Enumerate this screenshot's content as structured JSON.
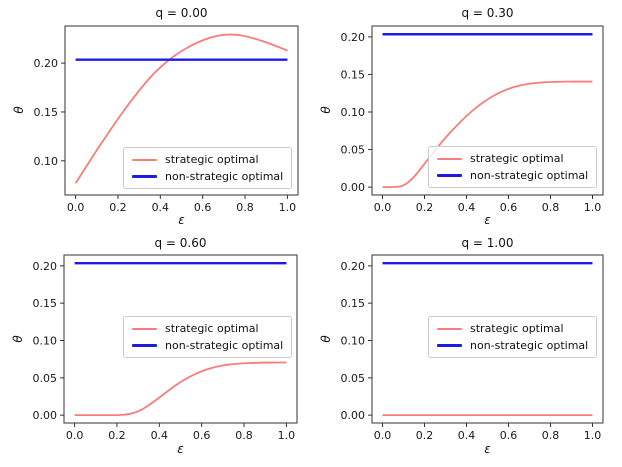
{
  "figure": {
    "background": "#ffffff"
  },
  "colors": {
    "strategic": "#f97c7c",
    "non_strategic": "#1c1ce0",
    "frame": "#333333",
    "text": "#1a1a1a",
    "legend_border": "#cccccc"
  },
  "legend": {
    "strategic": "strategic optimal",
    "non_strategic": "non-strategic optimal"
  },
  "chart_data": [
    {
      "type": "line",
      "title": "q = 0.00",
      "xlabel": "ε",
      "ylabel": "θ",
      "xlim": [
        -0.05,
        1.05
      ],
      "ylim": [
        0.065,
        0.238
      ],
      "xticks": [
        0.0,
        0.2,
        0.4,
        0.6,
        0.8,
        1.0
      ],
      "xtick_labels": [
        "0.0",
        "0.2",
        "0.4",
        "0.6",
        "0.8",
        "1.0"
      ],
      "yticks": [
        0.1,
        0.15,
        0.2
      ],
      "ytick_labels": [
        "0.10",
        "0.15",
        "0.20"
      ],
      "grid": false,
      "legend_position": "lower right",
      "x": [
        0,
        0.05,
        0.1,
        0.15,
        0.2,
        0.25,
        0.3,
        0.35,
        0.4,
        0.45,
        0.5,
        0.55,
        0.6,
        0.65,
        0.7,
        0.75,
        0.8,
        0.85,
        0.9,
        0.95,
        1.0
      ],
      "series": [
        {
          "name": "strategic optimal",
          "color_key": "strategic",
          "values": [
            0.077,
            0.094,
            0.111,
            0.127,
            0.143,
            0.158,
            0.172,
            0.185,
            0.196,
            0.205,
            0.2125,
            0.2185,
            0.2235,
            0.2272,
            0.2292,
            0.2293,
            0.2277,
            0.2248,
            0.2212,
            0.2172,
            0.2128
          ]
        },
        {
          "name": "non-strategic optimal",
          "color_key": "non_strategic",
          "x": [
            0,
            1.0
          ],
          "values": [
            0.2035,
            0.2035
          ]
        }
      ]
    },
    {
      "type": "line",
      "title": "q = 0.30",
      "xlabel": "ε",
      "ylabel": "θ",
      "xlim": [
        -0.05,
        1.05
      ],
      "ylim": [
        -0.0105,
        0.2145
      ],
      "xticks": [
        0.0,
        0.2,
        0.4,
        0.6,
        0.8,
        1.0
      ],
      "xtick_labels": [
        "0.0",
        "0.2",
        "0.4",
        "0.6",
        "0.8",
        "1.0"
      ],
      "yticks": [
        0.0,
        0.05,
        0.1,
        0.15,
        0.2
      ],
      "ytick_labels": [
        "0.00",
        "0.05",
        "0.10",
        "0.15",
        "0.20"
      ],
      "grid": false,
      "legend_position": "lower right",
      "x": [
        0,
        0.05,
        0.1,
        0.15,
        0.2,
        0.25,
        0.3,
        0.35,
        0.4,
        0.45,
        0.5,
        0.55,
        0.6,
        0.65,
        0.7,
        0.75,
        0.8,
        0.85,
        0.9,
        0.95,
        1.0
      ],
      "series": [
        {
          "name": "strategic optimal",
          "color_key": "strategic",
          "values": [
            0,
            0,
            0.001,
            0.013,
            0.031,
            0.049,
            0.066,
            0.081,
            0.095,
            0.107,
            0.117,
            0.125,
            0.131,
            0.1352,
            0.1378,
            0.1392,
            0.14,
            0.1404,
            0.1405,
            0.1405,
            0.1405
          ]
        },
        {
          "name": "non-strategic optimal",
          "color_key": "non_strategic",
          "x": [
            0,
            1.0
          ],
          "values": [
            0.2035,
            0.2035
          ]
        }
      ]
    },
    {
      "type": "line",
      "title": "q = 0.60",
      "xlabel": "ε",
      "ylabel": "θ",
      "xlim": [
        -0.05,
        1.05
      ],
      "ylim": [
        -0.0105,
        0.2145
      ],
      "xticks": [
        0.0,
        0.2,
        0.4,
        0.6,
        0.8,
        1.0
      ],
      "xtick_labels": [
        "0.0",
        "0.2",
        "0.4",
        "0.6",
        "0.8",
        "1.0"
      ],
      "yticks": [
        0.0,
        0.05,
        0.1,
        0.15,
        0.2
      ],
      "ytick_labels": [
        "0.00",
        "0.05",
        "0.10",
        "0.15",
        "0.20"
      ],
      "grid": false,
      "legend_position": "center right",
      "x": [
        0,
        0.05,
        0.1,
        0.15,
        0.2,
        0.25,
        0.3,
        0.35,
        0.4,
        0.45,
        0.5,
        0.55,
        0.6,
        0.65,
        0.7,
        0.75,
        0.8,
        0.85,
        0.9,
        0.95,
        1.0
      ],
      "series": [
        {
          "name": "strategic optimal",
          "color_key": "strategic",
          "values": [
            0,
            0,
            0,
            0,
            0,
            0.0008,
            0.0045,
            0.013,
            0.0235,
            0.0345,
            0.0445,
            0.0525,
            0.059,
            0.0637,
            0.0667,
            0.0685,
            0.0696,
            0.0701,
            0.0704,
            0.0705,
            0.0705
          ]
        },
        {
          "name": "non-strategic optimal",
          "color_key": "non_strategic",
          "x": [
            0,
            1.0
          ],
          "values": [
            0.2035,
            0.2035
          ]
        }
      ]
    },
    {
      "type": "line",
      "title": "q = 1.00",
      "xlabel": "ε",
      "ylabel": "θ",
      "xlim": [
        -0.05,
        1.05
      ],
      "ylim": [
        -0.0105,
        0.2145
      ],
      "xticks": [
        0.0,
        0.2,
        0.4,
        0.6,
        0.8,
        1.0
      ],
      "xtick_labels": [
        "0.0",
        "0.2",
        "0.4",
        "0.6",
        "0.8",
        "1.0"
      ],
      "yticks": [
        0.0,
        0.05,
        0.1,
        0.15,
        0.2
      ],
      "ytick_labels": [
        "0.00",
        "0.05",
        "0.10",
        "0.15",
        "0.20"
      ],
      "grid": false,
      "legend_position": "center right",
      "x": [
        0,
        1.0
      ],
      "series": [
        {
          "name": "strategic optimal",
          "color_key": "strategic",
          "values": [
            0,
            0
          ]
        },
        {
          "name": "non-strategic optimal",
          "color_key": "non_strategic",
          "x": [
            0,
            1.0
          ],
          "values": [
            0.2035,
            0.2035
          ]
        }
      ]
    }
  ]
}
